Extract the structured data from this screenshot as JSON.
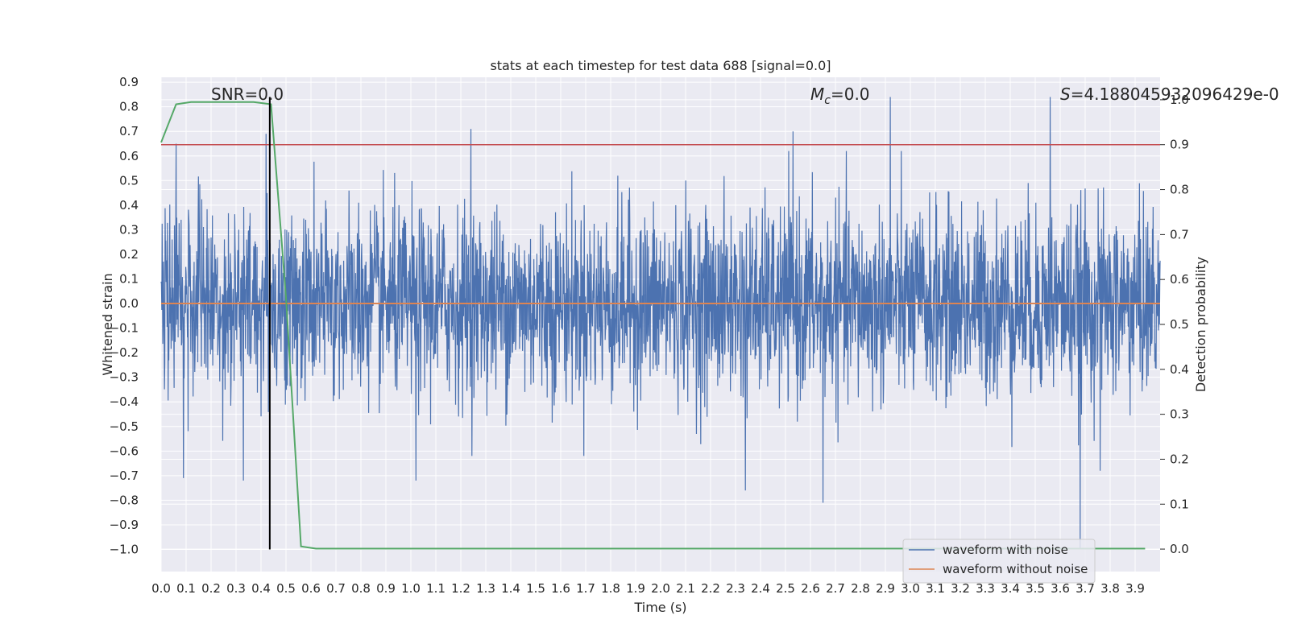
{
  "chart_data": {
    "type": "line",
    "title": "stats at each timestep for test data 688 [signal=0.0]",
    "xlabel": "Time (s)",
    "ylabel": "Whitened strain",
    "y2label": "Detection probability",
    "xlim": [
      0.0,
      4.0
    ],
    "ylim": [
      -1.09,
      0.92
    ],
    "y2lim": [
      -0.05,
      1.05
    ],
    "x_ticks": [
      "0.0",
      "0.1",
      "0.2",
      "0.3",
      "0.4",
      "0.5",
      "0.6",
      "0.7",
      "0.8",
      "0.9",
      "1.0",
      "1.1",
      "1.2",
      "1.3",
      "1.4",
      "1.5",
      "1.6",
      "1.7",
      "1.8",
      "1.9",
      "2.0",
      "2.1",
      "2.2",
      "2.3",
      "2.4",
      "2.5",
      "2.6",
      "2.7",
      "2.8",
      "2.9",
      "3.0",
      "3.1",
      "3.2",
      "3.3",
      "3.4",
      "3.5",
      "3.6",
      "3.7",
      "3.8",
      "3.9"
    ],
    "y_ticks": [
      "0.9",
      "0.8",
      "0.7",
      "0.6",
      "0.5",
      "0.4",
      "0.3",
      "0.2",
      "0.1",
      "0.0",
      "−0.1",
      "−0.2",
      "−0.3",
      "−0.4",
      "−0.5",
      "−0.6",
      "−0.7",
      "−0.8",
      "−0.9",
      "−1.0"
    ],
    "y2_ticks": [
      "1.0",
      "0.9",
      "0.8",
      "0.7",
      "0.6",
      "0.5",
      "0.4",
      "0.3",
      "0.2",
      "0.1",
      "0.0"
    ],
    "grid": true,
    "legend_position": "bottom-right",
    "annotations": {
      "snr": "SNR=0.0",
      "mc_symbol": "M",
      "mc_sub": "c",
      "mc_value": "=0.0",
      "s_symbol": "S",
      "s_value": "=4.188045932096429e-0"
    },
    "series": [
      {
        "name": "waveform with noise",
        "color": "#4c72b0",
        "style": "noise",
        "x_range": [
          0.0,
          4.0
        ],
        "amplitude_std": 0.19,
        "peaks": [
          {
            "x": 0.06,
            "y": 0.65
          },
          {
            "x": 0.42,
            "y": 0.69
          },
          {
            "x": 1.24,
            "y": 0.71
          },
          {
            "x": 2.53,
            "y": 0.7
          },
          {
            "x": 2.92,
            "y": 0.84
          },
          {
            "x": 3.56,
            "y": 0.84
          },
          {
            "x": 0.09,
            "y": -0.71
          },
          {
            "x": 0.33,
            "y": -0.72
          },
          {
            "x": 1.02,
            "y": -0.72
          },
          {
            "x": 2.34,
            "y": -0.76
          },
          {
            "x": 2.65,
            "y": -0.81
          },
          {
            "x": 3.68,
            "y": -1.0
          },
          {
            "x": 3.76,
            "y": -0.68
          }
        ]
      },
      {
        "name": "waveform without noise",
        "color": "#dd8452",
        "style": "flat",
        "x": [
          0.0,
          4.0
        ],
        "y": [
          0.0,
          0.0
        ]
      },
      {
        "name": "",
        "color": "#55a868",
        "style": "line",
        "axis": "y2",
        "x": [
          0.0,
          0.06,
          0.12,
          0.19,
          0.25,
          0.31,
          0.37,
          0.44,
          0.5,
          0.56,
          0.62,
          0.69,
          0.75,
          3.94
        ],
        "y": [
          0.905,
          0.99,
          0.995,
          0.995,
          0.995,
          0.995,
          0.995,
          0.99,
          0.56,
          0.006,
          0.001,
          0.001,
          0.001,
          0.001
        ]
      }
    ],
    "hlines": [
      {
        "axis": "y2",
        "y": 0.9,
        "color": "#c44e52"
      }
    ],
    "vlines": [
      {
        "x": 0.435,
        "y_from": -1.0,
        "y_to": 0.84,
        "color": "#000000"
      }
    ]
  }
}
